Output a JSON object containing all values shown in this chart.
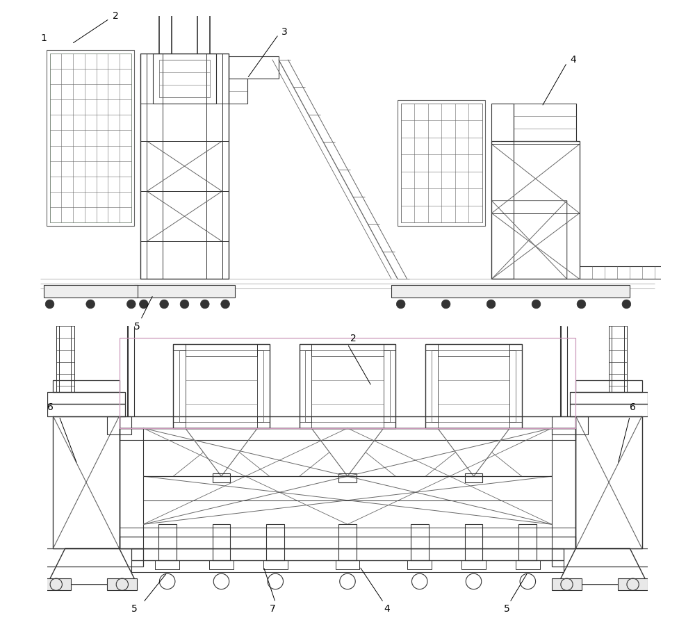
{
  "bg_color": "#ffffff",
  "lc": "#666666",
  "dc": "#333333",
  "mc": "#444444",
  "gc": "#99bb99",
  "pk": "#cc99bb",
  "fig_width": 10.0,
  "fig_height": 9.02
}
